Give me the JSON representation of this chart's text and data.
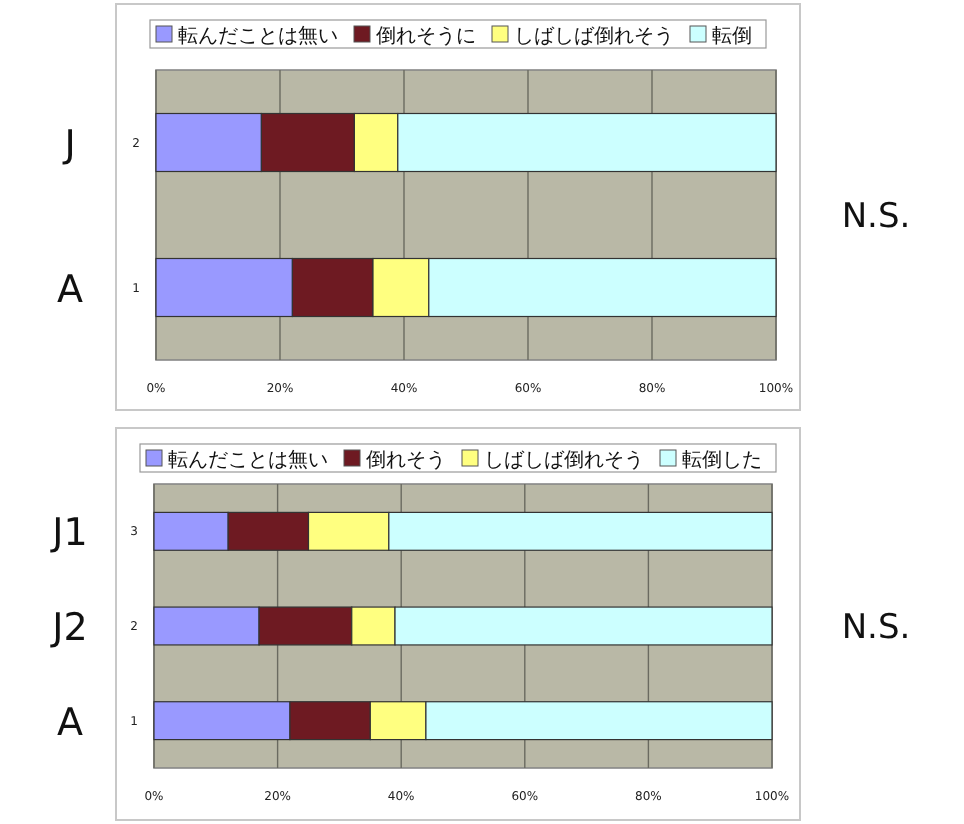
{
  "chart_data": [
    {
      "type": "bar",
      "orientation": "horizontal",
      "stacked": true,
      "legend": "top",
      "grid": "x",
      "categories": [
        "2",
        "1"
      ],
      "xlim": [
        0,
        100
      ],
      "xticks": [
        {
          "value": 0,
          "label": "0%"
        },
        {
          "value": 20,
          "label": "20%"
        },
        {
          "value": 40,
          "label": "40%"
        },
        {
          "value": 60,
          "label": "60%"
        },
        {
          "value": 80,
          "label": "80%"
        },
        {
          "value": 100,
          "label": "100%"
        }
      ],
      "series": [
        {
          "name": "転んだことは無い",
          "color": "#9999ff",
          "values": [
            17,
            22
          ]
        },
        {
          "name": "倒れそうに",
          "color": "#6e1a22",
          "values": [
            15,
            13
          ]
        },
        {
          "name": "しばしば倒れそう",
          "color": "#ffff80",
          "values": [
            7,
            9
          ]
        },
        {
          "name": "転倒",
          "color": "#ccffff",
          "values": [
            61,
            56
          ]
        }
      ],
      "annotations": [
        "J",
        "A",
        "N.S."
      ]
    },
    {
      "type": "bar",
      "orientation": "horizontal",
      "stacked": true,
      "legend": "top",
      "grid": "x",
      "categories": [
        "3",
        "2",
        "1"
      ],
      "xlim": [
        0,
        100
      ],
      "xticks": [
        {
          "value": 0,
          "label": "0%"
        },
        {
          "value": 20,
          "label": "20%"
        },
        {
          "value": 40,
          "label": "40%"
        },
        {
          "value": 60,
          "label": "60%"
        },
        {
          "value": 80,
          "label": "80%"
        },
        {
          "value": 100,
          "label": "100%"
        }
      ],
      "series": [
        {
          "name": "転んだことは無い",
          "color": "#9999ff",
          "values": [
            12,
            17,
            22
          ]
        },
        {
          "name": "倒れそう",
          "color": "#6e1a22",
          "values": [
            13,
            15,
            13
          ]
        },
        {
          "name": "しばしば倒れそう",
          "color": "#ffff80",
          "values": [
            13,
            7,
            9
          ]
        },
        {
          "name": "転倒した",
          "color": "#ccffff",
          "values": [
            62,
            61,
            56
          ]
        }
      ],
      "annotations": [
        "J1",
        "J2",
        "A",
        "N.S."
      ]
    }
  ]
}
